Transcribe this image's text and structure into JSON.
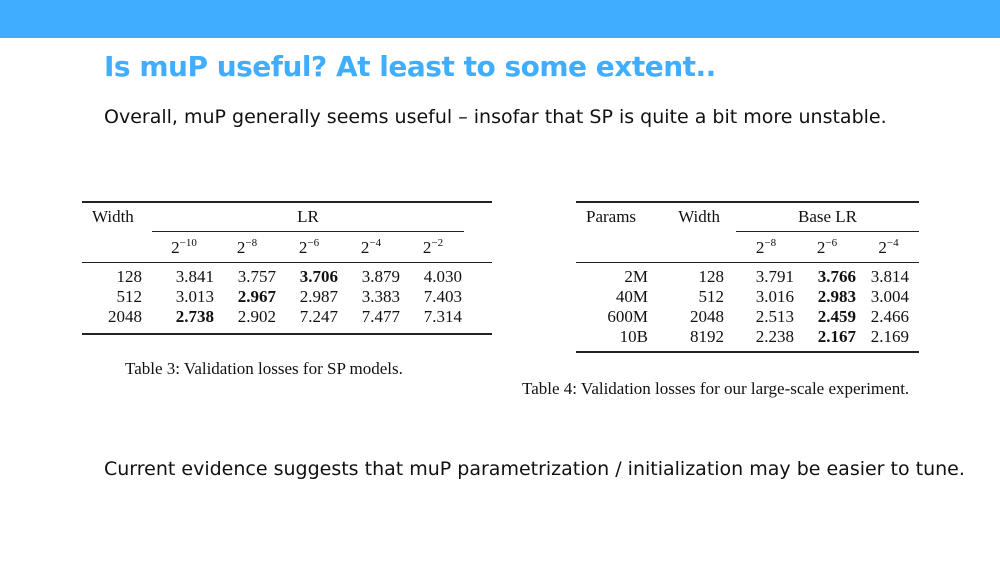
{
  "slide": {
    "title": "Is muP useful? At least to some extent..",
    "line1": "Overall, muP generally seems useful – insofar that SP is quite a bit more unstable.",
    "line2": "Current evidence suggests that muP parametrization / initialization may be easier to tune."
  },
  "colors": {
    "accent": "#41adff"
  },
  "table3": {
    "head_width": "Width",
    "head_lr": "LR",
    "lr_base": "2",
    "lr_exps": [
      "−10",
      "−8",
      "−6",
      "−4",
      "−2"
    ],
    "rows": [
      {
        "width": "128",
        "vals": [
          "3.841",
          "3.757",
          "3.706",
          "3.879",
          "4.030"
        ],
        "bold": 2
      },
      {
        "width": "512",
        "vals": [
          "3.013",
          "2.967",
          "2.987",
          "3.383",
          "7.403"
        ],
        "bold": 1
      },
      {
        "width": "2048",
        "vals": [
          "2.738",
          "2.902",
          "7.247",
          "7.477",
          "7.314"
        ],
        "bold": 0
      }
    ],
    "caption": "Table 3: Validation losses for SP models."
  },
  "table4": {
    "head_params": "Params",
    "head_width": "Width",
    "head_lr": "Base LR",
    "lr_base": "2",
    "lr_exps": [
      "−8",
      "−6",
      "−4"
    ],
    "rows": [
      {
        "params": "2M",
        "width": "128",
        "vals": [
          "3.791",
          "3.766",
          "3.814"
        ],
        "bold": 1
      },
      {
        "params": "40M",
        "width": "512",
        "vals": [
          "3.016",
          "2.983",
          "3.004"
        ],
        "bold": 1
      },
      {
        "params": "600M",
        "width": "2048",
        "vals": [
          "2.513",
          "2.459",
          "2.466"
        ],
        "bold": 1
      },
      {
        "params": "10B",
        "width": "8192",
        "vals": [
          "2.238",
          "2.167",
          "2.169"
        ],
        "bold": 1
      }
    ],
    "caption": "Table 4: Validation losses for our large-scale experiment."
  }
}
